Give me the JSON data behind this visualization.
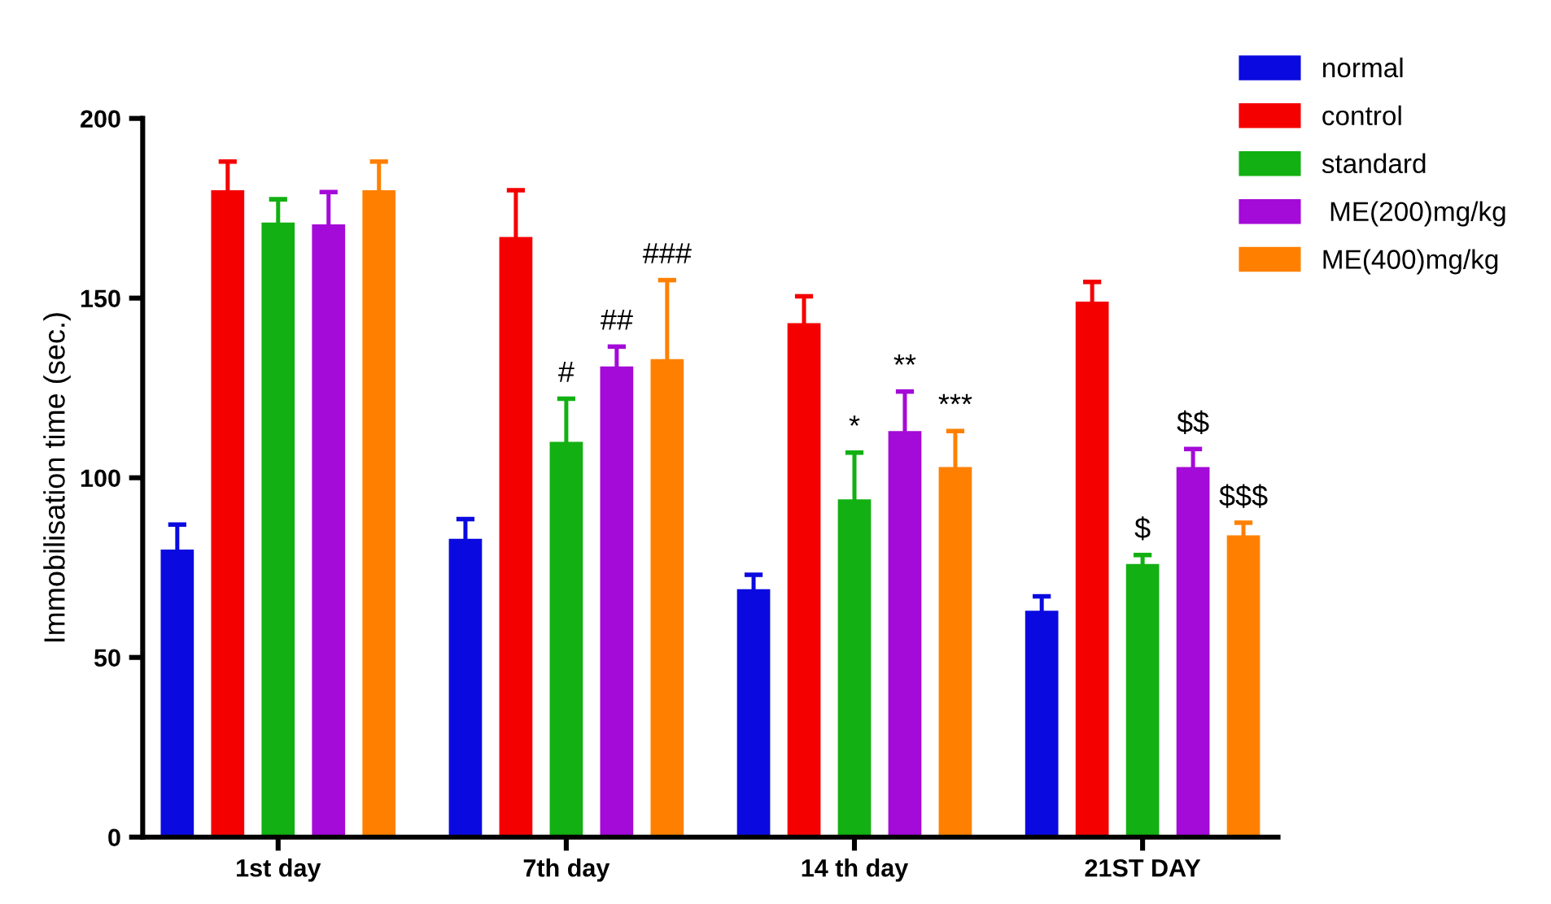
{
  "chart_data": {
    "type": "bar",
    "ylabel": "Immobilisation time (sec.)",
    "categories": [
      "1st day",
      "7th day",
      "14 th day",
      "21ST DAY"
    ],
    "ylim": [
      0,
      200
    ],
    "yticks": [
      0,
      50,
      100,
      150,
      200
    ],
    "grid": false,
    "legend": "top right",
    "series": [
      {
        "name": "normal",
        "color": "#0a0ae0",
        "values": [
          80,
          83,
          69,
          63
        ],
        "errors": [
          7,
          5.5,
          4,
          4
        ]
      },
      {
        "name": "control",
        "color": "#f40000",
        "values": [
          180,
          167,
          143,
          149
        ],
        "errors": [
          8,
          13,
          7.5,
          5.5
        ]
      },
      {
        "name": "standard",
        "color": "#12b012",
        "values": [
          171,
          110,
          94,
          76
        ],
        "errors": [
          6.5,
          12,
          13,
          2.5
        ]
      },
      {
        "name": " ME(200)mg/kg",
        "color": "#a40ad8",
        "values": [
          170.5,
          131,
          113,
          103
        ],
        "errors": [
          9,
          5.5,
          11,
          5
        ]
      },
      {
        "name": "ME(400)mg/kg",
        "color": "#ff8000",
        "values": [
          180,
          133,
          103,
          84
        ],
        "errors": [
          8,
          22,
          10,
          3.5
        ]
      }
    ],
    "annotations": [
      "#",
      "##",
      "###",
      "*",
      "**",
      "***",
      "$",
      "$$",
      "$$$"
    ]
  }
}
